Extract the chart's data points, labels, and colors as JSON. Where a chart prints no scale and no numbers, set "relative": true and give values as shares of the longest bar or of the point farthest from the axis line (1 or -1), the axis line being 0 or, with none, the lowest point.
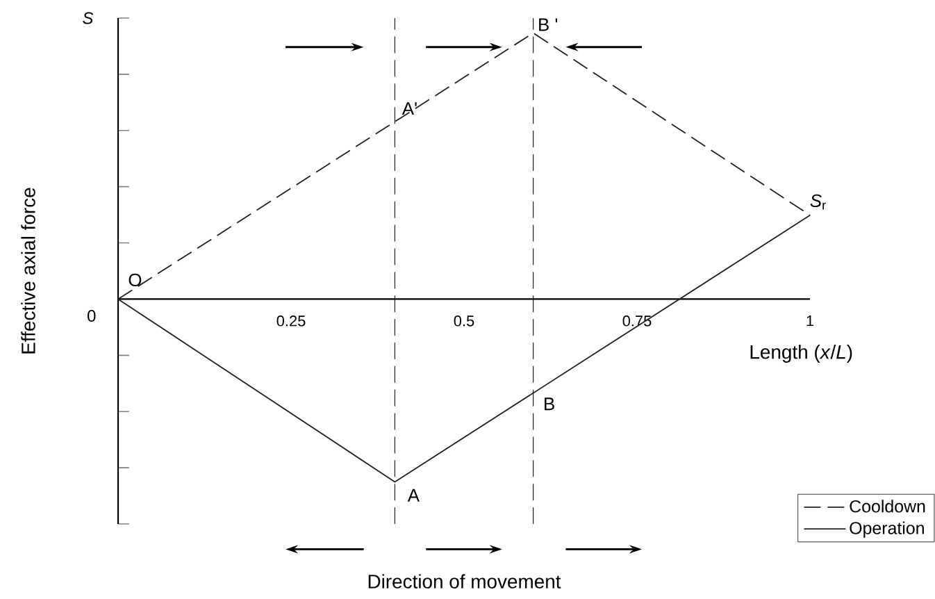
{
  "chart_data": {
    "type": "line",
    "relative": true,
    "xlabel": "Length (*x*/*L*)",
    "ylabel": "Effective axial force",
    "series": [
      {
        "name": "Cooldown",
        "color": "#231f20",
        "line_style": "dashed",
        "x": [
          0,
          0.6,
          1
        ],
        "values": [
          0,
          1,
          0.315
        ]
      },
      {
        "name": "Operation",
        "color": "#231f20",
        "line_style": "solid",
        "x": [
          0,
          0.4,
          1
        ],
        "values": [
          0,
          -0.687,
          0.315
        ]
      }
    ],
    "xlim": [
      0,
      1
    ],
    "xticks": [
      0.25,
      0.5,
      0.75,
      1
    ],
    "ref_lines": [
      {
        "axis": "x",
        "value": 0.4,
        "color": "#231f20",
        "line_style": "dashed"
      },
      {
        "axis": "x",
        "value": 0.6,
        "color": "#231f20",
        "line_style": "dashed"
      }
    ],
    "annotations": [
      {
        "text": "O",
        "x": 0,
        "y": 0
      },
      {
        "text": "A'",
        "x": 0.4,
        "y": 0.666
      },
      {
        "text": "B '",
        "x": 0.6,
        "y": 1
      },
      {
        "text": "*S*$_{r}$",
        "x": 1,
        "y": 0.315
      },
      {
        "text": "A",
        "x": 0.4,
        "y": -0.687
      },
      {
        "text": "B",
        "x": 0.6,
        "y": -0.354
      },
      "Direction of movement",
      "S",
      "0"
    ],
    "grid": false,
    "legend": "bottom right"
  }
}
